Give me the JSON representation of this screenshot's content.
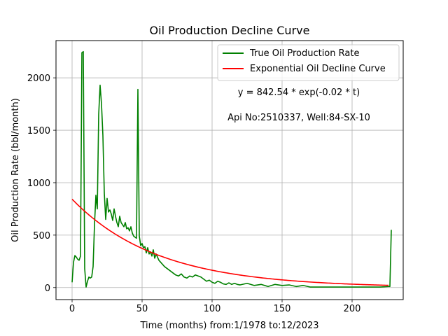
{
  "chart_data": {
    "type": "line",
    "title": "Oil Production Decline Curve",
    "xlabel": "Time (months) from:1/1978 to:12/2023",
    "ylabel": "Oil Production Rate (bbl/month)",
    "xlim": [
      -11.5,
      236.5
    ],
    "ylim": [
      -115,
      2355
    ],
    "xticks": [
      0,
      50,
      100,
      150,
      200
    ],
    "yticks": [
      0,
      500,
      1000,
      1500,
      2000
    ],
    "grid": true,
    "legend_position": "top-right",
    "annotations": [
      "y = 842.54 * exp(-0.02 * t)",
      "Api No:2510337, Well:84-SX-10"
    ],
    "series": [
      {
        "name": "True Oil Production Rate",
        "color": "#008000",
        "x": [
          0,
          1,
          2,
          3,
          4,
          5,
          6,
          7,
          8,
          9,
          10,
          11,
          12,
          13,
          14,
          15,
          16,
          17,
          18,
          19,
          20,
          21,
          22,
          23,
          24,
          25,
          26,
          27,
          28,
          29,
          30,
          31,
          32,
          33,
          34,
          35,
          36,
          37,
          38,
          39,
          40,
          41,
          42,
          43,
          44,
          45,
          46,
          47,
          48,
          49,
          50,
          51,
          52,
          53,
          54,
          55,
          56,
          57,
          58,
          59,
          60,
          62,
          64,
          66,
          68,
          70,
          72,
          74,
          76,
          78,
          80,
          82,
          84,
          86,
          88,
          90,
          92,
          94,
          96,
          98,
          100,
          102,
          104,
          106,
          108,
          110,
          112,
          114,
          116,
          118,
          120,
          125,
          130,
          135,
          140,
          145,
          150,
          155,
          160,
          165,
          170,
          180,
          190,
          200,
          210,
          220,
          226,
          227,
          228
        ],
        "y": [
          50,
          240,
          305,
          290,
          270,
          260,
          300,
          2240,
          2250,
          180,
          5,
          60,
          100,
          90,
          100,
          200,
          600,
          880,
          750,
          1650,
          1930,
          1750,
          1450,
          900,
          650,
          850,
          720,
          740,
          700,
          640,
          750,
          680,
          620,
          580,
          680,
          620,
          600,
          580,
          620,
          560,
          570,
          540,
          580,
          520,
          490,
          480,
          470,
          1890,
          490,
          400,
          420,
          380,
          390,
          330,
          380,
          320,
          340,
          300,
          360,
          280,
          320,
          260,
          230,
          200,
          180,
          160,
          140,
          120,
          110,
          130,
          100,
          90,
          110,
          100,
          120,
          110,
          100,
          80,
          60,
          70,
          50,
          40,
          60,
          50,
          35,
          30,
          45,
          30,
          40,
          30,
          25,
          40,
          20,
          30,
          10,
          30,
          20,
          25,
          10,
          20,
          5,
          5,
          5,
          5,
          5,
          5,
          10,
          10,
          550
        ]
      },
      {
        "name": "Exponential Oil Decline Curve",
        "color": "#ff0000",
        "function": "842.54 * exp(-0.02 * t)",
        "x_range": [
          0,
          226
        ]
      }
    ]
  }
}
